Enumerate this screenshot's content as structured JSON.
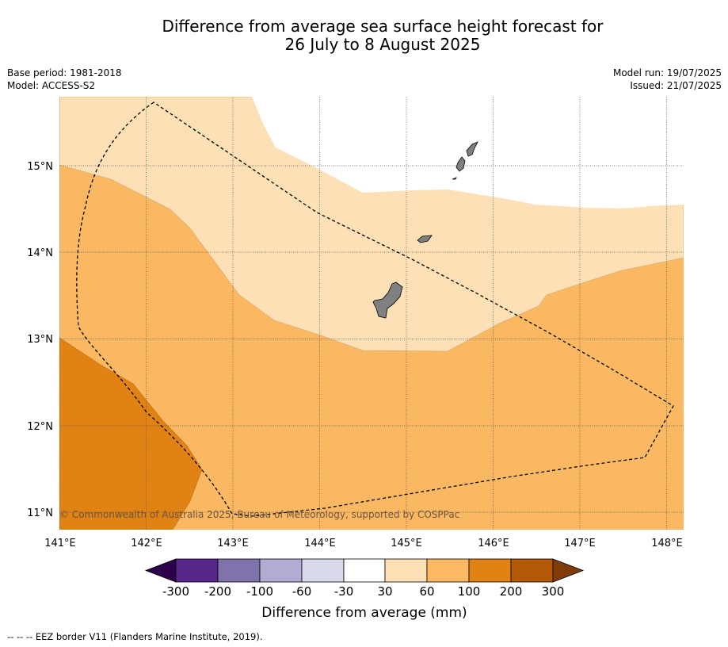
{
  "title": {
    "line1": "Difference from average sea surface height forecast for",
    "line2": "26 July to 8 August 2025"
  },
  "info": {
    "base_period": "Base period: 1981-2018",
    "model": "Model: ACCESS-S2",
    "model_run": "Model run: 19/07/2025",
    "issued": "Issued: 21/07/2025"
  },
  "map": {
    "lon_labels": [
      "141°E",
      "142°E",
      "143°E",
      "144°E",
      "145°E",
      "146°E",
      "147°E",
      "148°E"
    ],
    "lat_labels": [
      "15°N",
      "14°N",
      "13°N",
      "12°N",
      "11°N"
    ],
    "copyright": "© Commonwealth of Australia 2025, Bureau of Meteorology, supported by COSPPac",
    "colors": {
      "band_30_60": "#fde0b6",
      "band_60_100": "#fab862",
      "band_100_200": "#e08214",
      "land": "#808080"
    }
  },
  "colorbar": {
    "title": "Difference from average (mm)",
    "tick_labels": [
      "-300",
      "-200",
      "-100",
      "-60",
      "-30",
      "30",
      "60",
      "100",
      "200",
      "300"
    ],
    "colors": [
      "#2d004b",
      "#542788",
      "#8073ac",
      "#b2abd2",
      "#d8daeb",
      "#ffffff",
      "#fee0b6",
      "#fdb863",
      "#e08214",
      "#b35806",
      "#7f3b08"
    ]
  },
  "footer": {
    "legend": "--  --  -- EEZ border V11 (Flanders Marine Institute, 2019)."
  }
}
